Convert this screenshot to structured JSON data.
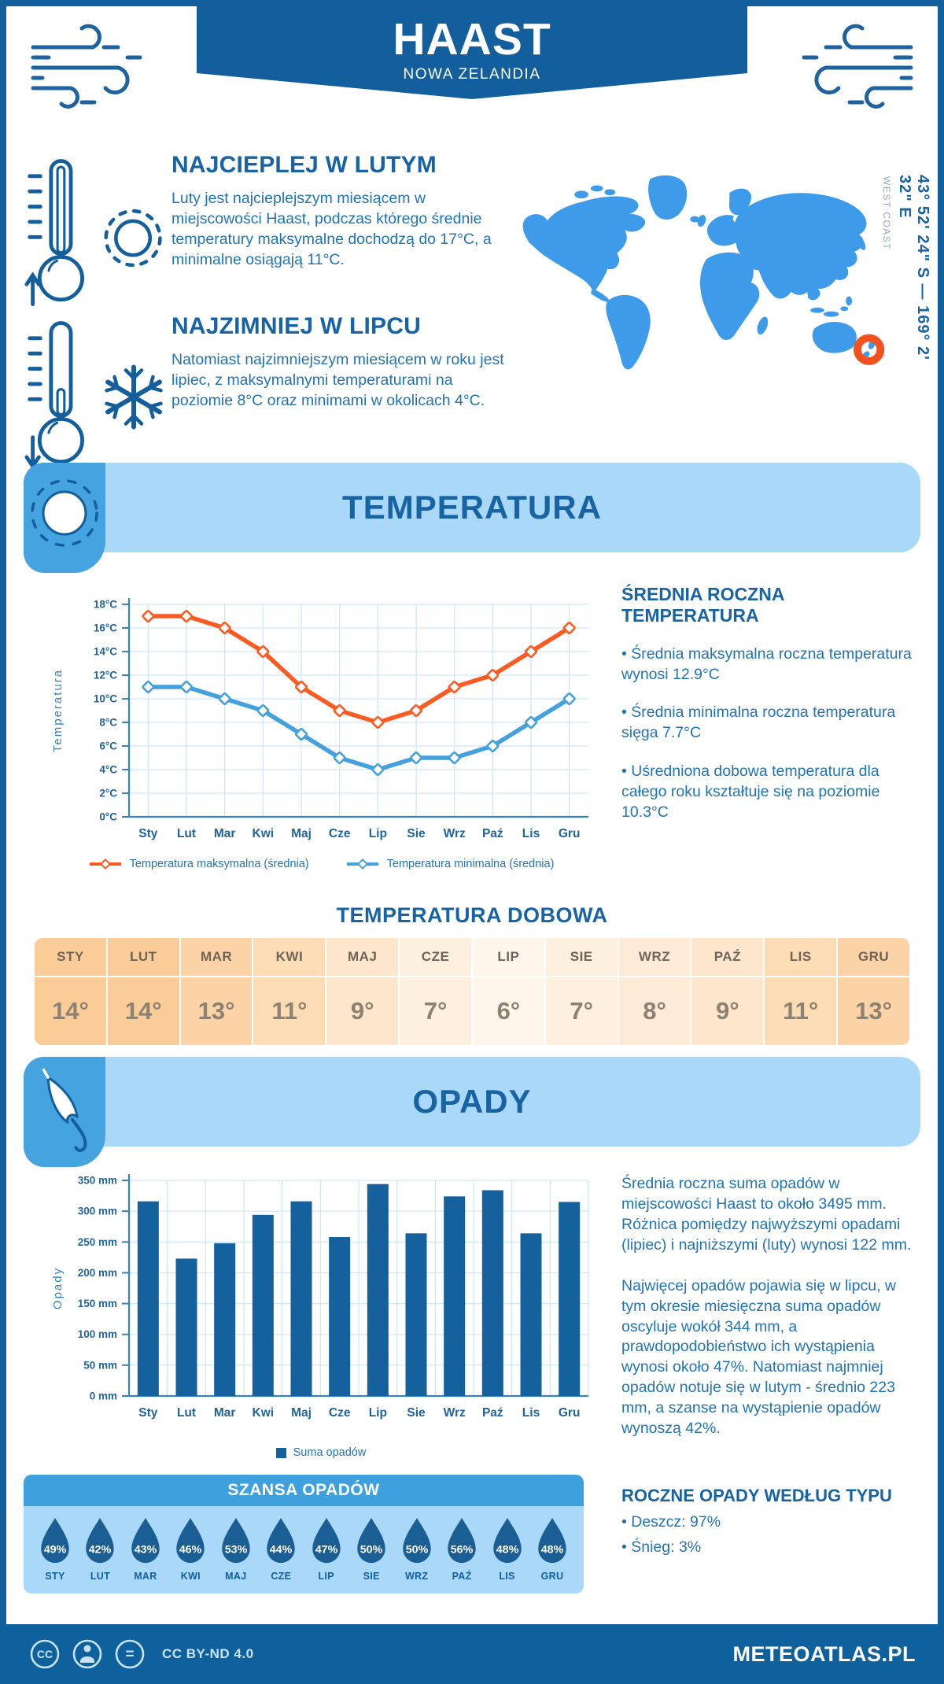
{
  "colors": {
    "ink": "#135E9C",
    "heading": "#1763A4",
    "body_text": "#2273B4",
    "banner_bg": "#A9D8F8",
    "icon_square_bg": "#45A3DF",
    "map_fill": "#3D9BE9",
    "marker_orange": "#F4511E",
    "max_line": "#F95B22",
    "min_line": "#45A1DD",
    "bar_fill": "#15619E",
    "drop_fill": "#1B5E94",
    "chance_header_bg": "#3EA0DD",
    "footer_bg": "#0F619E",
    "axis": "#3584BE",
    "grid": "#CFE7F8",
    "tick_label": "#1E649F",
    "table_head_text": "#6E6459",
    "table_val_text": "#8D8271"
  },
  "header": {
    "title": "HAAST",
    "subtitle": "NOWA ZELANDIA"
  },
  "location": {
    "coordinates": "43° 52' 24\" S — 169° 2' 32\" E",
    "region": "WEST COAST"
  },
  "highlights": {
    "warm": {
      "title": "NAJCIEPLEJ W LUTYM",
      "text": "Luty jest najcieplejszym miesiącem w miejscowości Haast, podczas którego średnie temperatury maksymalne dochodzą do 17°C, a minimalne osiągają 11°C."
    },
    "cold": {
      "title": "NAJZIMNIEJ W LIPCU",
      "text": "Natomiast najzimniejszym miesiącem w roku jest lipiec, z maksymalnymi temperaturami na poziomie 8°C oraz minimami w okolicach 4°C."
    }
  },
  "temperature": {
    "banner": "TEMPERATURA",
    "annual_title": "ŚREDNIA ROCZNA TEMPERATURA",
    "annual_points": [
      "Średnia maksymalna roczna temperatura wynosi 12.9°C",
      "Średnia minimalna roczna temperatura sięga 7.7°C",
      "Uśredniona dobowa temperatura dla całego roku kształtuje się na poziomie 10.3°C"
    ],
    "daily_title": "TEMPERATURA DOBOWA",
    "daily_months": [
      "STY",
      "LUT",
      "MAR",
      "KWI",
      "MAJ",
      "CZE",
      "LIP",
      "SIE",
      "WRZ",
      "PAŹ",
      "LIS",
      "GRU"
    ],
    "daily_values": [
      "14°",
      "14°",
      "13°",
      "11°",
      "9°",
      "7°",
      "6°",
      "7°",
      "8°",
      "9°",
      "11°",
      "13°"
    ],
    "daily_colors": [
      "#FACC97",
      "#FACC97",
      "#FBD3A6",
      "#FCDCB4",
      "#FDE6CB",
      "#FEF0DF",
      "#FFF5EA",
      "#FEF0DF",
      "#FEEBD7",
      "#FDE6CB",
      "#FCDCB4",
      "#FBD3A6"
    ]
  },
  "precipitation": {
    "banner": "OPADY",
    "paragraphs": [
      "Średnia roczna suma opadów w miejscowości Haast to około 3495 mm. Różnica pomiędzy najwyższymi opadami (lipiec) i najniższymi (luty) wynosi 122 mm.",
      "Najwięcej opadów pojawia się w lipcu, w tym okresie miesięczna suma opadów oscyluje wokół 344 mm, a prawdopodobieństwo ich wystąpienia wynosi około 47%. Natomiast najmniej opadów notuje się w lutym - średnio 223 mm, a szanse na wystąpienie opadów wynoszą 42%."
    ],
    "chance_title": "SZANSA OPADÓW",
    "chance_months": [
      "STY",
      "LUT",
      "MAR",
      "KWI",
      "MAJ",
      "CZE",
      "LIP",
      "SIE",
      "WRZ",
      "PAŹ",
      "LIS",
      "GRU"
    ],
    "chance_values": [
      "49%",
      "42%",
      "43%",
      "46%",
      "53%",
      "44%",
      "47%",
      "50%",
      "50%",
      "56%",
      "48%",
      "48%"
    ],
    "type_title": "ROCZNE OPADY WEDŁUG TYPU",
    "type_points": [
      "Deszcz: 97%",
      "Śnieg: 3%"
    ]
  },
  "footer": {
    "license": "CC BY-ND 4.0",
    "site": "METEOATLAS.PL"
  },
  "chart_data": [
    {
      "type": "line",
      "title": "Temperatura",
      "x": [
        "Sty",
        "Lut",
        "Mar",
        "Kwi",
        "Maj",
        "Cze",
        "Lip",
        "Sie",
        "Wrz",
        "Paź",
        "Lis",
        "Gru"
      ],
      "series": [
        {
          "name": "Temperatura maksymalna (średnia)",
          "color": "#F95B22",
          "values": [
            17,
            17,
            16,
            14,
            11,
            9,
            8,
            9,
            11,
            12,
            14,
            16
          ]
        },
        {
          "name": "Temperatura minimalna (średnia)",
          "color": "#45A1DD",
          "values": [
            11,
            11,
            10,
            9,
            7,
            5,
            4,
            5,
            5,
            6,
            8,
            10
          ]
        }
      ],
      "ylabel": "Temperatura",
      "ylim": [
        0,
        18
      ],
      "ytick_step": 2,
      "yunit": "°C",
      "grid": true,
      "legend_position": "bottom"
    },
    {
      "type": "bar",
      "title": "Opady",
      "categories": [
        "Sty",
        "Lut",
        "Mar",
        "Kwi",
        "Maj",
        "Cze",
        "Lip",
        "Sie",
        "Wrz",
        "Paź",
        "Lis",
        "Gru"
      ],
      "series": [
        {
          "name": "Suma opadów",
          "color": "#15619E",
          "values": [
            316,
            223,
            248,
            294,
            316,
            258,
            344,
            264,
            324,
            334,
            264,
            315
          ]
        }
      ],
      "ylabel": "Opady",
      "ylim": [
        0,
        350
      ],
      "ytick_step": 50,
      "yunit": " mm",
      "grid": true,
      "legend_position": "bottom"
    }
  ]
}
